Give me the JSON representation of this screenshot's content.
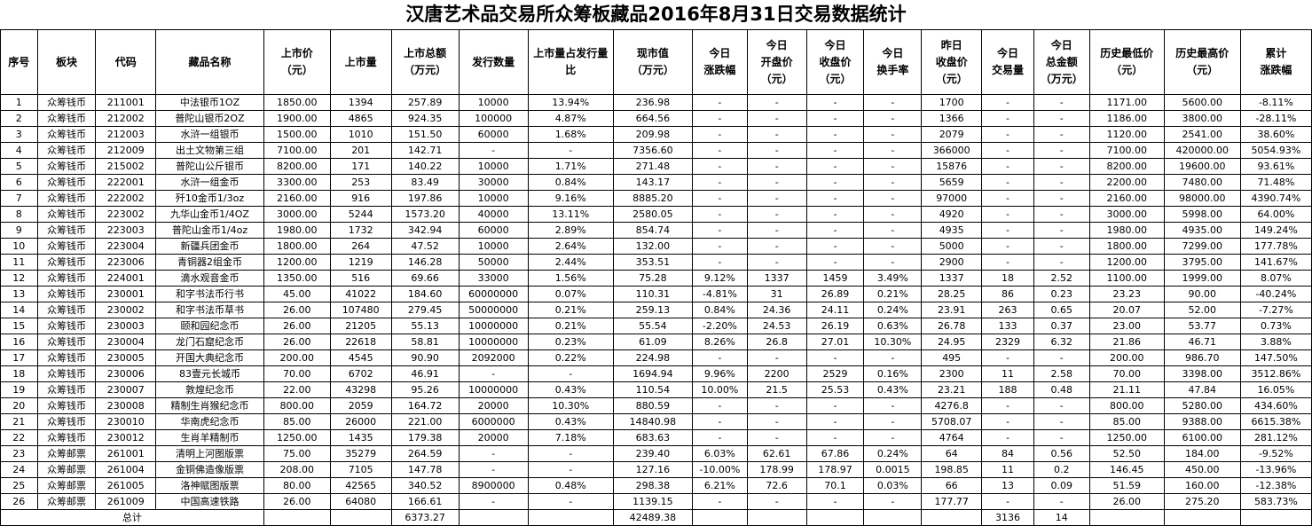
{
  "title": "汉唐艺术品交易所众筹板藏品2016年8月31日交易数据统计",
  "columns": [
    "序号",
    "板块",
    "代码",
    "藏品名称",
    "上市价\n（元）",
    "上市量",
    "上市总额\n（万元）",
    "发行数量",
    "上市量占发行量\n比",
    "现市值\n（万元）",
    "今日\n涨跌幅",
    "今日\n开盘价\n（元）",
    "今日\n收盘价\n（元）",
    "今日\n换手率",
    "昨日\n收盘价\n（元）",
    "今日\n交易量",
    "今日\n总金额\n（万元）",
    "历史最低价\n（元）",
    "历史最高价\n（元）",
    "累计\n涨跌幅"
  ],
  "rows": [
    [
      "1",
      "众筹钱币",
      "211001",
      "中法银币1OZ",
      "1850.00",
      "1394",
      "257.89",
      "10000",
      "13.94%",
      "236.98",
      "-",
      "-",
      "-",
      "-",
      "1700",
      "-",
      "-",
      "1171.00",
      "5600.00",
      "-8.11%"
    ],
    [
      "2",
      "众筹钱币",
      "212002",
      "普陀山银币2OZ",
      "1900.00",
      "4865",
      "924.35",
      "100000",
      "4.87%",
      "664.56",
      "-",
      "-",
      "-",
      "-",
      "1366",
      "-",
      "-",
      "1186.00",
      "3800.00",
      "-28.11%"
    ],
    [
      "3",
      "众筹钱币",
      "212003",
      "水浒一组银币",
      "1500.00",
      "1010",
      "151.50",
      "60000",
      "1.68%",
      "209.98",
      "-",
      "-",
      "-",
      "-",
      "2079",
      "-",
      "-",
      "1120.00",
      "2541.00",
      "38.60%"
    ],
    [
      "4",
      "众筹钱币",
      "212009",
      "出土文物第三组",
      "7100.00",
      "201",
      "142.71",
      "-",
      "-",
      "7356.60",
      "-",
      "-",
      "-",
      "-",
      "366000",
      "-",
      "-",
      "7100.00",
      "420000.00",
      "5054.93%"
    ],
    [
      "5",
      "众筹钱币",
      "215002",
      "普陀山公斤银币",
      "8200.00",
      "171",
      "140.22",
      "10000",
      "1.71%",
      "271.48",
      "-",
      "-",
      "-",
      "-",
      "15876",
      "-",
      "-",
      "8200.00",
      "19600.00",
      "93.61%"
    ],
    [
      "6",
      "众筹钱币",
      "222001",
      "水浒一组金币",
      "3300.00",
      "253",
      "83.49",
      "30000",
      "0.84%",
      "143.17",
      "-",
      "-",
      "-",
      "-",
      "5659",
      "-",
      "-",
      "2200.00",
      "7480.00",
      "71.48%"
    ],
    [
      "7",
      "众筹钱币",
      "222002",
      "歼10金币1/3oz",
      "2160.00",
      "916",
      "197.86",
      "10000",
      "9.16%",
      "8885.20",
      "-",
      "-",
      "-",
      "-",
      "97000",
      "-",
      "-",
      "2160.00",
      "98000.00",
      "4390.74%"
    ],
    [
      "8",
      "众筹钱币",
      "223002",
      "九华山金币1/4OZ",
      "3000.00",
      "5244",
      "1573.20",
      "40000",
      "13.11%",
      "2580.05",
      "-",
      "-",
      "-",
      "-",
      "4920",
      "-",
      "-",
      "3000.00",
      "5998.00",
      "64.00%"
    ],
    [
      "9",
      "众筹钱币",
      "223003",
      "普陀山金币1/4oz",
      "1980.00",
      "1732",
      "342.94",
      "60000",
      "2.89%",
      "854.74",
      "-",
      "-",
      "-",
      "-",
      "4935",
      "-",
      "-",
      "1980.00",
      "4935.00",
      "149.24%"
    ],
    [
      "10",
      "众筹钱币",
      "223004",
      "新疆兵团金币",
      "1800.00",
      "264",
      "47.52",
      "10000",
      "2.64%",
      "132.00",
      "-",
      "-",
      "-",
      "-",
      "5000",
      "-",
      "-",
      "1800.00",
      "7299.00",
      "177.78%"
    ],
    [
      "11",
      "众筹钱币",
      "223006",
      "青铜器2组金币",
      "1200.00",
      "1219",
      "146.28",
      "50000",
      "2.44%",
      "353.51",
      "-",
      "-",
      "-",
      "-",
      "2900",
      "-",
      "-",
      "1200.00",
      "3795.00",
      "141.67%"
    ],
    [
      "12",
      "众筹钱币",
      "224001",
      "滴水观音金币",
      "1350.00",
      "516",
      "69.66",
      "33000",
      "1.56%",
      "75.28",
      "9.12%",
      "1337",
      "1459",
      "3.49%",
      "1337",
      "18",
      "2.52",
      "1100.00",
      "1999.00",
      "8.07%"
    ],
    [
      "13",
      "众筹钱币",
      "230001",
      "和字书法币行书",
      "45.00",
      "41022",
      "184.60",
      "60000000",
      "0.07%",
      "110.31",
      "-4.81%",
      "31",
      "26.89",
      "0.21%",
      "28.25",
      "86",
      "0.23",
      "23.23",
      "90.00",
      "-40.24%"
    ],
    [
      "14",
      "众筹钱币",
      "230002",
      "和字书法币草书",
      "26.00",
      "107480",
      "279.45",
      "50000000",
      "0.21%",
      "259.13",
      "0.84%",
      "24.36",
      "24.11",
      "0.24%",
      "23.91",
      "263",
      "0.65",
      "20.07",
      "52.00",
      "-7.27%"
    ],
    [
      "15",
      "众筹钱币",
      "230003",
      "颐和园纪念币",
      "26.00",
      "21205",
      "55.13",
      "10000000",
      "0.21%",
      "55.54",
      "-2.20%",
      "24.53",
      "26.19",
      "0.63%",
      "26.78",
      "133",
      "0.37",
      "23.00",
      "53.77",
      "0.73%"
    ],
    [
      "16",
      "众筹钱币",
      "230004",
      "龙门石窟纪念币",
      "26.00",
      "22618",
      "58.81",
      "10000000",
      "0.23%",
      "61.09",
      "8.26%",
      "26.8",
      "27.01",
      "10.30%",
      "24.95",
      "2329",
      "6.32",
      "21.86",
      "46.71",
      "3.88%"
    ],
    [
      "17",
      "众筹钱币",
      "230005",
      "开国大典纪念币",
      "200.00",
      "4545",
      "90.90",
      "2092000",
      "0.22%",
      "224.98",
      "-",
      "-",
      "-",
      "-",
      "495",
      "-",
      "-",
      "200.00",
      "986.70",
      "147.50%"
    ],
    [
      "18",
      "众筹钱币",
      "230006",
      "83壹元长城币",
      "70.00",
      "6702",
      "46.91",
      "-",
      "-",
      "1694.94",
      "9.96%",
      "2200",
      "2529",
      "0.16%",
      "2300",
      "11",
      "2.58",
      "70.00",
      "3398.00",
      "3512.86%"
    ],
    [
      "19",
      "众筹钱币",
      "230007",
      "敦煌纪念币",
      "22.00",
      "43298",
      "95.26",
      "10000000",
      "0.43%",
      "110.54",
      "10.00%",
      "21.5",
      "25.53",
      "0.43%",
      "23.21",
      "188",
      "0.48",
      "21.11",
      "47.84",
      "16.05%"
    ],
    [
      "20",
      "众筹钱币",
      "230008",
      "精制生肖猴纪念币",
      "800.00",
      "2059",
      "164.72",
      "20000",
      "10.30%",
      "880.59",
      "-",
      "-",
      "-",
      "-",
      "4276.8",
      "-",
      "-",
      "800.00",
      "5280.00",
      "434.60%"
    ],
    [
      "21",
      "众筹钱币",
      "230010",
      "华南虎纪念币",
      "85.00",
      "26000",
      "221.00",
      "6000000",
      "0.43%",
      "14840.98",
      "-",
      "-",
      "-",
      "-",
      "5708.07",
      "-",
      "-",
      "85.00",
      "9388.00",
      "6615.38%"
    ],
    [
      "22",
      "众筹钱币",
      "230012",
      "生肖羊精制币",
      "1250.00",
      "1435",
      "179.38",
      "20000",
      "7.18%",
      "683.63",
      "-",
      "-",
      "-",
      "-",
      "4764",
      "-",
      "-",
      "1250.00",
      "6100.00",
      "281.12%"
    ],
    [
      "23",
      "众筹邮票",
      "261001",
      "清明上河图版票",
      "75.00",
      "35279",
      "264.59",
      "-",
      "-",
      "239.40",
      "6.03%",
      "62.61",
      "67.86",
      "0.24%",
      "64",
      "84",
      "0.56",
      "52.50",
      "184.00",
      "-9.52%"
    ],
    [
      "24",
      "众筹邮票",
      "261004",
      "金铜佛造像版票",
      "208.00",
      "7105",
      "147.78",
      "-",
      "-",
      "127.16",
      "-10.00%",
      "178.99",
      "178.97",
      "0.0015",
      "198.85",
      "11",
      "0.2",
      "146.45",
      "450.00",
      "-13.96%"
    ],
    [
      "25",
      "众筹邮票",
      "261005",
      "洛神赋图版票",
      "80.00",
      "42565",
      "340.52",
      "8900000",
      "0.48%",
      "298.38",
      "6.21%",
      "72.6",
      "70.1",
      "0.03%",
      "66",
      "13",
      "0.09",
      "51.59",
      "160.00",
      "-12.38%"
    ],
    [
      "26",
      "众筹邮票",
      "261009",
      "中国高速铁路",
      "26.00",
      "64080",
      "166.61",
      "-",
      "-",
      "1139.15",
      "-",
      "-",
      "-",
      "-",
      "177.77",
      "-",
      "-",
      "26.00",
      "275.20",
      "583.73%"
    ]
  ],
  "footer": {
    "label": "总计",
    "total_amount": "6373.27",
    "market_value": "42489.38",
    "volume": "3136",
    "turnover": "14"
  }
}
